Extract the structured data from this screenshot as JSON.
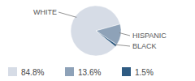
{
  "chart_data": {
    "type": "pie",
    "categories": [
      "WHITE",
      "HISPANIC",
      "BLACK"
    ],
    "values": [
      84.8,
      13.6,
      1.5
    ],
    "value_labels": [
      "84.8%",
      "13.6%",
      "1.5%"
    ],
    "colors": [
      "#d6dce6",
      "#8ea2b8",
      "#2f5b82"
    ],
    "legend": "bottom"
  }
}
